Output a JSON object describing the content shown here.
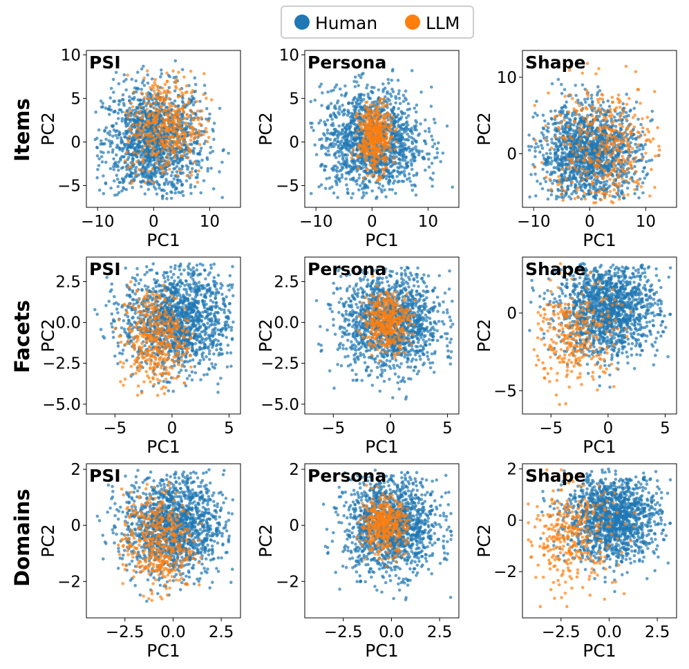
{
  "legend": [
    {
      "label": "Human",
      "color": "#1f77b4"
    },
    {
      "label": "LLM",
      "color": "#ff7f0e"
    }
  ],
  "row_labels": [
    "Items",
    "Facets",
    "Domains"
  ],
  "chart_data": [
    {
      "type": "scatter",
      "row": "Items",
      "title": "PSI",
      "xlabel": "PC1",
      "ylabel": "PC2",
      "xlim": [
        -12,
        15.5
      ],
      "ylim": [
        -7.5,
        10.5
      ],
      "xticks": [
        -10,
        0,
        10
      ],
      "yticks": [
        -5,
        0,
        5,
        10
      ],
      "series": [
        {
          "name": "Human",
          "color": "#1f77b4",
          "n": 1400,
          "cx": 0,
          "cy": 0,
          "sx": 4.5,
          "sy": 3.2,
          "x_range": [
            -10.5,
            14
          ],
          "y_range": [
            -6.5,
            9.5
          ]
        },
        {
          "name": "LLM",
          "color": "#ff7f0e",
          "n": 420,
          "cx": 2,
          "cy": 1.8,
          "sx": 3.5,
          "sy": 3,
          "x_range": [
            -6,
            11
          ],
          "y_range": [
            -5,
            8.5
          ]
        }
      ]
    },
    {
      "type": "scatter",
      "row": "Items",
      "title": "Persona",
      "xlabel": "PC1",
      "ylabel": "PC2",
      "xlim": [
        -12,
        15.5
      ],
      "ylim": [
        -7.5,
        10.5
      ],
      "xticks": [
        -10,
        0,
        10
      ],
      "yticks": [
        -5,
        0,
        5,
        10
      ],
      "series": [
        {
          "name": "Human",
          "color": "#1f77b4",
          "n": 1400,
          "cx": 0,
          "cy": 0,
          "sx": 4.5,
          "sy": 3,
          "x_range": [
            -11,
            14.5
          ],
          "y_range": [
            -6.5,
            8.5
          ]
        },
        {
          "name": "LLM",
          "color": "#ff7f0e",
          "n": 400,
          "cx": 0.5,
          "cy": 0.5,
          "sx": 1.5,
          "sy": 2,
          "x_range": [
            -4,
            6
          ],
          "y_range": [
            -4.5,
            5
          ]
        }
      ]
    },
    {
      "type": "scatter",
      "row": "Items",
      "title": "Shape",
      "xlabel": "PC1",
      "ylabel": "PC2",
      "xlim": [
        -12,
        15.5
      ],
      "ylim": [
        -7,
        13.5
      ],
      "xticks": [
        -10,
        0,
        10
      ],
      "yticks": [
        0,
        10
      ],
      "series": [
        {
          "name": "Human",
          "color": "#1f77b4",
          "n": 1400,
          "cx": 0,
          "cy": 0,
          "sx": 4.5,
          "sy": 3.2,
          "x_range": [
            -11,
            14
          ],
          "y_range": [
            -6,
            10.5
          ]
        },
        {
          "name": "LLM",
          "color": "#ff7f0e",
          "n": 380,
          "cx": 2,
          "cy": 1,
          "sx": 5,
          "sy": 4.2,
          "x_range": [
            -10,
            12.5
          ],
          "y_range": [
            -6.5,
            12.5
          ]
        }
      ]
    },
    {
      "type": "scatter",
      "row": "Facets",
      "title": "PSI",
      "xlabel": "PC1",
      "ylabel": "PC2",
      "xlim": [
        -7.5,
        6
      ],
      "ylim": [
        -5.6,
        4
      ],
      "xticks": [
        -5,
        0,
        5
      ],
      "yticks": [
        -5.0,
        -2.5,
        0.0,
        2.5
      ],
      "tick_decimals": 1,
      "series": [
        {
          "name": "Human",
          "color": "#1f77b4",
          "n": 1400,
          "cx": 0.5,
          "cy": 0.2,
          "sx": 2.4,
          "sy": 1.6,
          "x_range": [
            -7,
            5.5
          ],
          "y_range": [
            -5.2,
            3.6
          ]
        },
        {
          "name": "LLM",
          "color": "#ff7f0e",
          "n": 400,
          "cx": -1.5,
          "cy": -1,
          "sx": 1.5,
          "sy": 1.6,
          "x_range": [
            -5,
            2
          ],
          "y_range": [
            -4.5,
            2.5
          ]
        }
      ]
    },
    {
      "type": "scatter",
      "row": "Facets",
      "title": "Persona",
      "xlabel": "PC1",
      "ylabel": "PC2",
      "xlim": [
        -7.5,
        6
      ],
      "ylim": [
        -5.6,
        4
      ],
      "xticks": [
        -5,
        0,
        5
      ],
      "yticks": [
        -5.0,
        -2.5,
        0.0,
        2.5
      ],
      "tick_decimals": 1,
      "series": [
        {
          "name": "Human",
          "color": "#1f77b4",
          "n": 1400,
          "cx": 0,
          "cy": 0,
          "sx": 2.2,
          "sy": 1.5,
          "x_range": [
            -7,
            5.5
          ],
          "y_range": [
            -5.2,
            3.4
          ]
        },
        {
          "name": "LLM",
          "color": "#ff7f0e",
          "n": 380,
          "cx": -0.3,
          "cy": 0.1,
          "sx": 1,
          "sy": 0.9,
          "x_range": [
            -3,
            2.5
          ],
          "y_range": [
            -2.5,
            3
          ]
        }
      ]
    },
    {
      "type": "scatter",
      "row": "Facets",
      "title": "Shape",
      "xlabel": "PC1",
      "ylabel": "PC2",
      "xlim": [
        -7.5,
        6
      ],
      "ylim": [
        -6.5,
        3.6
      ],
      "xticks": [
        -5,
        0,
        5
      ],
      "yticks": [
        -5,
        0
      ],
      "series": [
        {
          "name": "Human",
          "color": "#1f77b4",
          "n": 1400,
          "cx": 0,
          "cy": 0.3,
          "sx": 2.2,
          "sy": 1.5,
          "x_range": [
            -7,
            5.5
          ],
          "y_range": [
            -5.5,
            3.2
          ]
        },
        {
          "name": "LLM",
          "color": "#ff7f0e",
          "n": 300,
          "cx": -3,
          "cy": -1.5,
          "sx": 1.8,
          "sy": 1.8,
          "x_range": [
            -6.5,
            2.5
          ],
          "y_range": [
            -6,
            3.3
          ]
        }
      ]
    },
    {
      "type": "scatter",
      "row": "Domains",
      "title": "PSI",
      "xlabel": "PC1",
      "ylabel": "PC2",
      "xlim": [
        -4.5,
        3.5
      ],
      "ylim": [
        -3.3,
        2.2
      ],
      "xticks": [
        -2.5,
        0.0,
        2.5
      ],
      "yticks": [
        -2,
        0,
        2
      ],
      "xtick_decimals": 1,
      "series": [
        {
          "name": "Human",
          "color": "#1f77b4",
          "n": 1400,
          "cx": 0,
          "cy": 0,
          "sx": 1.3,
          "sy": 0.9,
          "x_range": [
            -4,
            3.2
          ],
          "y_range": [
            -3,
            2
          ]
        },
        {
          "name": "LLM",
          "color": "#ff7f0e",
          "n": 420,
          "cx": -0.8,
          "cy": -0.6,
          "sx": 0.9,
          "sy": 0.9,
          "x_range": [
            -3,
            1.5
          ],
          "y_range": [
            -2.8,
            1.8
          ]
        }
      ]
    },
    {
      "type": "scatter",
      "row": "Domains",
      "title": "Persona",
      "xlabel": "PC1",
      "ylabel": "PC2",
      "xlim": [
        -4.5,
        3.5
      ],
      "ylim": [
        -3.3,
        2.2
      ],
      "xticks": [
        -2.5,
        0.0,
        2.5
      ],
      "yticks": [
        -2,
        0,
        2
      ],
      "xtick_decimals": 1,
      "series": [
        {
          "name": "Human",
          "color": "#1f77b4",
          "n": 1400,
          "cx": 0,
          "cy": 0,
          "sx": 1.2,
          "sy": 0.85,
          "x_range": [
            -4,
            3.2
          ],
          "y_range": [
            -3,
            2
          ]
        },
        {
          "name": "LLM",
          "color": "#ff7f0e",
          "n": 400,
          "cx": -0.4,
          "cy": 0,
          "sx": 0.6,
          "sy": 0.5,
          "x_range": [
            -1.8,
            1
          ],
          "y_range": [
            -1.5,
            1.5
          ]
        }
      ]
    },
    {
      "type": "scatter",
      "row": "Domains",
      "title": "Shape",
      "xlabel": "PC1",
      "ylabel": "PC2",
      "xlim": [
        -4.5,
        3.5
      ],
      "ylim": [
        -3.8,
        2.2
      ],
      "xticks": [
        -2.5,
        0.0,
        2.5
      ],
      "yticks": [
        -2,
        0,
        2
      ],
      "xtick_decimals": 1,
      "series": [
        {
          "name": "Human",
          "color": "#1f77b4",
          "n": 1400,
          "cx": 0.2,
          "cy": 0.1,
          "sx": 1.2,
          "sy": 0.85,
          "x_range": [
            -4,
            3.2
          ],
          "y_range": [
            -2.8,
            2
          ]
        },
        {
          "name": "LLM",
          "color": "#ff7f0e",
          "n": 330,
          "cx": -2,
          "cy": -0.6,
          "sx": 1.2,
          "sy": 1,
          "x_range": [
            -4.2,
            1.5
          ],
          "y_range": [
            -3.6,
            2
          ]
        }
      ]
    }
  ]
}
